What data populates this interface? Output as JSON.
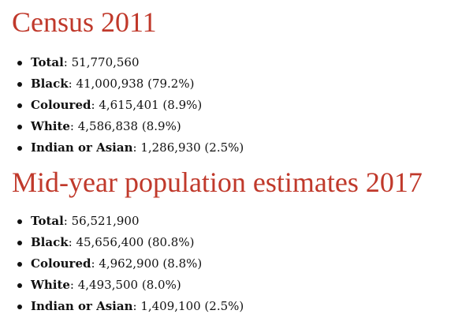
{
  "sections": [
    {
      "title": "Census 2011",
      "items": [
        {
          "label": "Total",
          "value": "51,770,560"
        },
        {
          "label": "Black",
          "value": "41,000,938 (79.2%)"
        },
        {
          "label": "Coloured",
          "value": "4,615,401 (8.9%)"
        },
        {
          "label": "White",
          "value": "4,586,838 (8.9%)"
        },
        {
          "label": "Indian or Asian",
          "value": "1,286,930 (2.5%)"
        }
      ]
    },
    {
      "title": "Mid-year population estimates 2017",
      "items": [
        {
          "label": "Total",
          "value": "56,521,900"
        },
        {
          "label": "Black",
          "value": "45,656,400 (80.8%)"
        },
        {
          "label": "Coloured",
          "value": "4,962,900 (8.8%)"
        },
        {
          "label": "White",
          "value": "4,493,500 (8.0%)"
        },
        {
          "label": "Indian or Asian",
          "value": "1,409,100 (2.5%)"
        }
      ]
    }
  ],
  "colors": {
    "heading": "#c0392b",
    "text": "#111111"
  }
}
